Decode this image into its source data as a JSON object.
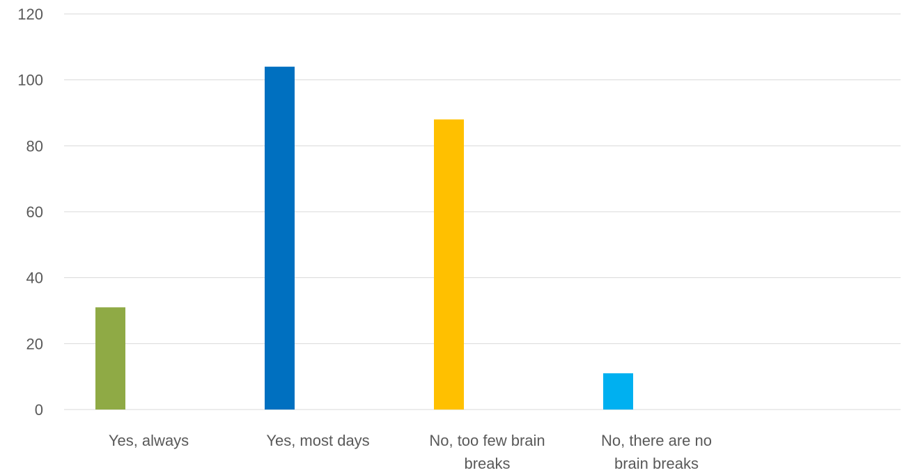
{
  "chart_data": {
    "type": "bar",
    "title": "",
    "xlabel": "",
    "ylabel": "",
    "ylim": [
      0,
      120
    ],
    "yticks": [
      0,
      20,
      40,
      60,
      80,
      100,
      120
    ],
    "grid": true,
    "categories": [
      [
        "Yes, always"
      ],
      [
        "Yes, most days"
      ],
      [
        "No, too few brain",
        "breaks"
      ],
      [
        "No, there are no",
        "brain breaks"
      ]
    ],
    "values": [
      31,
      104,
      88,
      11
    ],
    "colors": [
      "#8faa45",
      "#0070c0",
      "#ffc000",
      "#00b0f0"
    ]
  }
}
